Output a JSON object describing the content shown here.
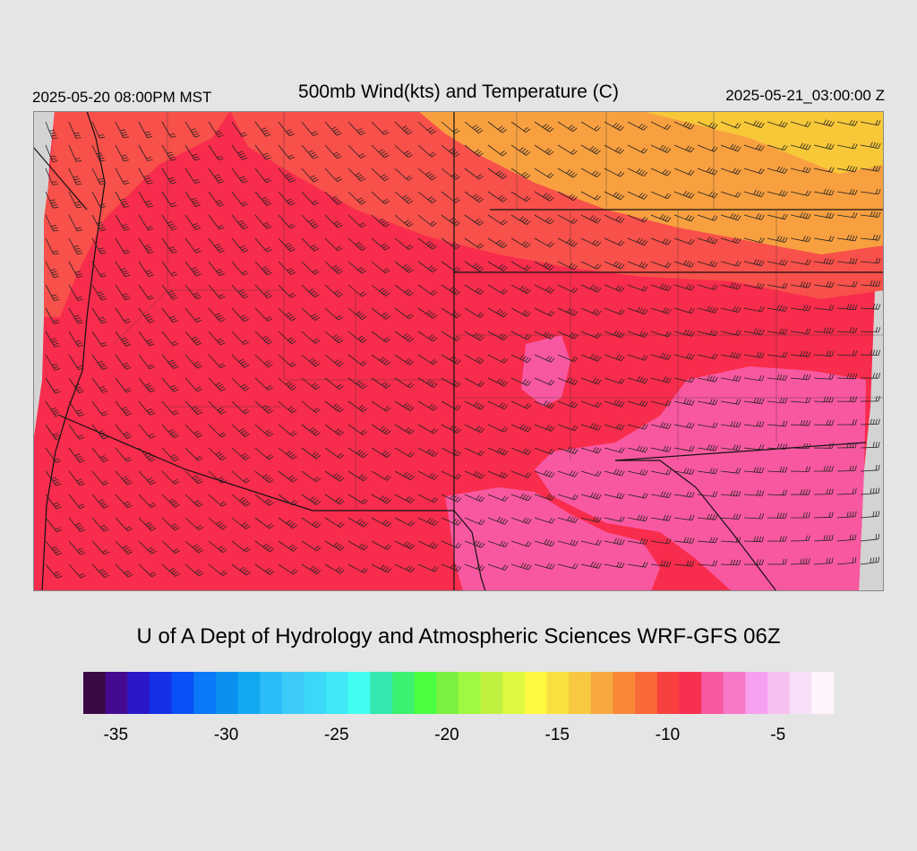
{
  "header": {
    "local_time": "2025-05-20 08:00PM MST",
    "title": "500mb Wind(kts) and Temperature (C)",
    "utc_time": "2025-05-21_03:00:00 Z"
  },
  "credit": "U of A Dept of Hydrology and Atmospheric Sciences WRF-GFS 06Z",
  "colorbar": {
    "colors": [
      "#3a0a45",
      "#440a90",
      "#2a18c8",
      "#1630e8",
      "#0a50f8",
      "#0a78f8",
      "#0a90f0",
      "#12a8f0",
      "#2abcf8",
      "#3ccaf8",
      "#3cd8f8",
      "#40e8f8",
      "#40fff0",
      "#34e8b0",
      "#3cf070",
      "#4aff40",
      "#7cf040",
      "#a0f840",
      "#c0f040",
      "#e0f840",
      "#fff840",
      "#f8e040",
      "#f8c840",
      "#f8a840",
      "#f88838",
      "#f86838",
      "#f84040",
      "#f83050",
      "#f858a0",
      "#f878c8",
      "#f8a0f0",
      "#f8c0f0",
      "#f8e0f8",
      "#fff4fc"
    ],
    "labels": [
      {
        "text": "-35",
        "index": 0.5
      },
      {
        "text": "-30",
        "index": 5.5
      },
      {
        "text": "-25",
        "index": 10.5
      },
      {
        "text": "-20",
        "index": 15.5
      },
      {
        "text": "-15",
        "index": 20.5
      },
      {
        "text": "-10",
        "index": 25.5
      },
      {
        "text": "-5",
        "index": 30.5
      }
    ]
  },
  "map": {
    "background_color": "#f82c4c",
    "no_data_color": "#d3d3d3",
    "orange_color": "#f8504a",
    "light_orange_color": "#f8a040",
    "yellow_color": "#f8c838",
    "pink_color": "#f858a0",
    "border_color": "#111111",
    "barb_color": "#222222"
  }
}
